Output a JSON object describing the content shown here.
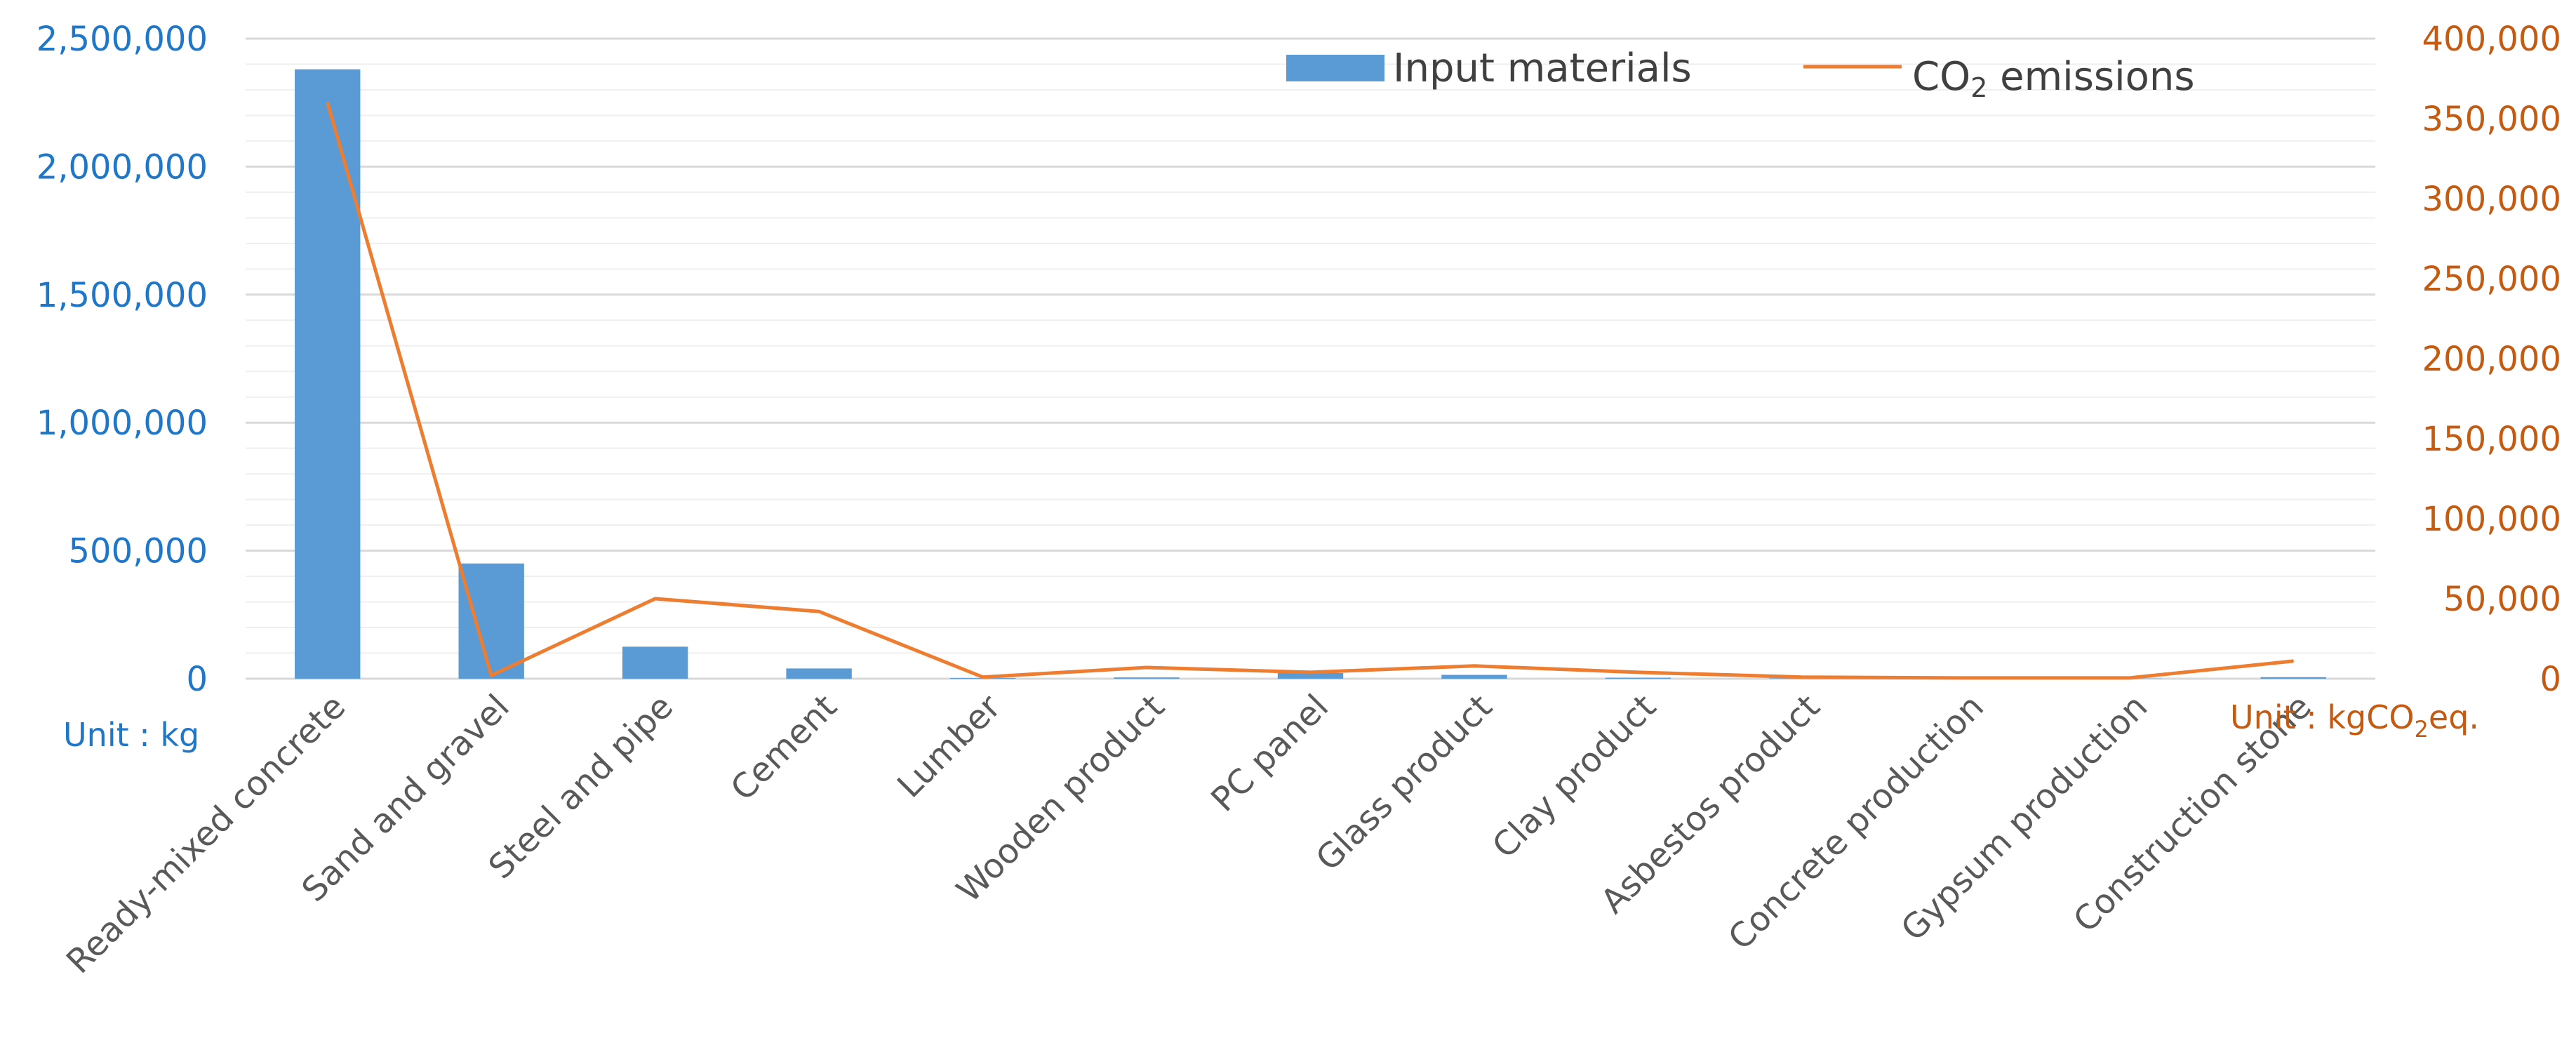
{
  "chart_data": {
    "type": "bar",
    "title": "",
    "categories": [
      "Ready-mixed concrete",
      "Sand and gravel",
      "Steel and pipe",
      "Cement",
      "Lumber",
      "Wooden product",
      "PC panel",
      "Glass product",
      "Clay product",
      "Asbestos product",
      "Concrete production",
      "Gypsum production",
      "Construction stone"
    ],
    "series": [
      {
        "name": "Input materials",
        "type": "bar",
        "axis": "left",
        "color": "#5b9bd5",
        "values": [
          2380000,
          450000,
          125000,
          40000,
          3000,
          5000,
          22000,
          15000,
          4000,
          2000,
          1000,
          1000,
          6000
        ]
      },
      {
        "name": "CO₂ emissions",
        "type": "line",
        "axis": "right",
        "color": "#ed7d31",
        "values": [
          360000,
          2000,
          50000,
          42000,
          1000,
          7000,
          4000,
          8000,
          4000,
          1000,
          500,
          500,
          11000
        ]
      }
    ],
    "y_left": {
      "min": 0,
      "max": 2500000,
      "major_step": 500000,
      "minor_step": 100000,
      "tick_labels": [
        "0",
        "500,000",
        "1,000,000",
        "1,500,000",
        "2,000,000",
        "2,500,000"
      ],
      "unit_label": "Unit : kg",
      "color": "#1f77c9"
    },
    "y_right": {
      "min": 0,
      "max": 400000,
      "major_step": 50000,
      "tick_labels": [
        "0",
        "50,000",
        "100,000",
        "150,000",
        "200,000",
        "250,000",
        "300,000",
        "350,000",
        "400,000"
      ],
      "unit_prefix": "Unit : kgCO",
      "unit_sub": "2",
      "unit_suffix": "eq.",
      "color": "#c55a11"
    },
    "grid": true,
    "legend": {
      "position": "top-right",
      "items": [
        {
          "label": "Input materials",
          "marker": "bar"
        },
        {
          "label_prefix": "CO",
          "label_sub": "2",
          "label_suffix": " emissions",
          "marker": "line"
        }
      ]
    }
  }
}
